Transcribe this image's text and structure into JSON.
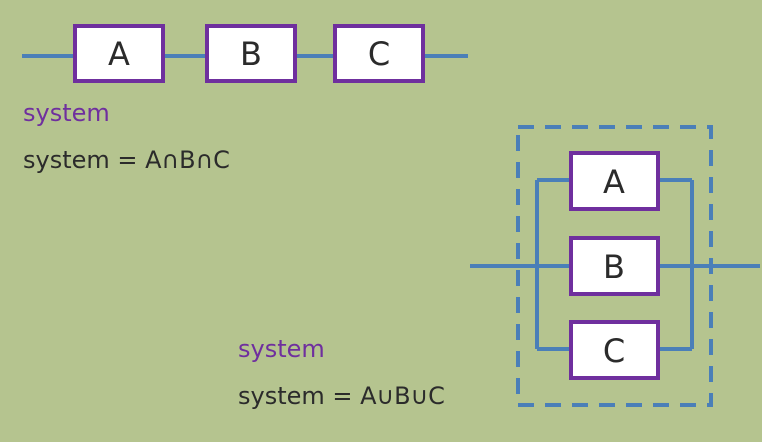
{
  "colors": {
    "background": "#b5c48f",
    "wire": "#4a7fb8",
    "block_border": "#6f2f9e",
    "block_fill": "#ffffff",
    "heading_text": "#6f2f9e",
    "body_text": "#2b2b2b"
  },
  "series_diagram": {
    "blocks": [
      "A",
      "B",
      "C"
    ],
    "title": "system",
    "formula": "system = A∩B∩C"
  },
  "parallel_diagram": {
    "blocks": [
      "A",
      "B",
      "C"
    ],
    "title": "system",
    "formula": "system = A∪B∪C"
  }
}
